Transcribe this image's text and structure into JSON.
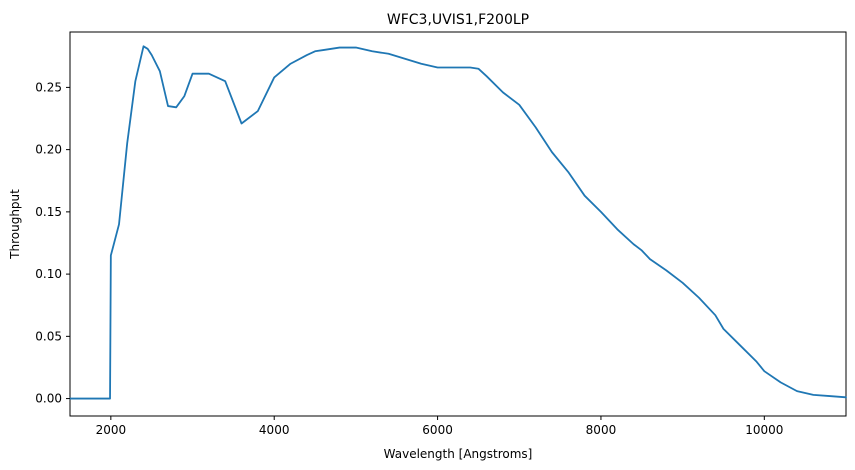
{
  "chart_data": {
    "type": "line",
    "title": "WFC3,UVIS1,F200LP",
    "xlabel": "Wavelength [Angstroms]",
    "ylabel": "Throughput",
    "xlim": [
      1500,
      11000
    ],
    "ylim": [
      -0.014,
      0.2945
    ],
    "grid": false,
    "color": "#1f77b4",
    "x_ticks": [
      {
        "value": 2000,
        "label": "2000"
      },
      {
        "value": 4000,
        "label": "4000"
      },
      {
        "value": 6000,
        "label": "6000"
      },
      {
        "value": 8000,
        "label": "8000"
      },
      {
        "value": 10000,
        "label": "10000"
      }
    ],
    "y_ticks": [
      {
        "value": 0.0,
        "label": "0.00"
      },
      {
        "value": 0.05,
        "label": "0.05"
      },
      {
        "value": 0.1,
        "label": "0.10"
      },
      {
        "value": 0.15,
        "label": "0.15"
      },
      {
        "value": 0.2,
        "label": "0.20"
      },
      {
        "value": 0.25,
        "label": "0.25"
      }
    ],
    "series": [
      {
        "x": [
          1500,
          1990,
          2000,
          2020,
          2100,
          2200,
          2300,
          2400,
          2450,
          2500,
          2600,
          2700,
          2800,
          2900,
          3000,
          3100,
          3200,
          3300,
          3400,
          3600,
          3800,
          4000,
          4200,
          4400,
          4500,
          4600,
          4700,
          4800,
          4900,
          5000,
          5200,
          5400,
          5600,
          5800,
          6000,
          6200,
          6400,
          6500,
          6600,
          6800,
          7000,
          7200,
          7400,
          7600,
          7800,
          8000,
          8200,
          8400,
          8500,
          8600,
          8800,
          9000,
          9200,
          9400,
          9500,
          9700,
          9900,
          10000,
          10200,
          10400,
          10600,
          10800,
          11000
        ],
        "y": [
          0.0,
          0.0,
          0.115,
          0.12,
          0.14,
          0.205,
          0.255,
          0.283,
          0.281,
          0.276,
          0.263,
          0.235,
          0.234,
          0.243,
          0.261,
          0.261,
          0.261,
          0.258,
          0.255,
          0.221,
          0.231,
          0.258,
          0.269,
          0.276,
          0.279,
          0.28,
          0.281,
          0.282,
          0.282,
          0.282,
          0.279,
          0.277,
          0.273,
          0.269,
          0.266,
          0.266,
          0.266,
          0.265,
          0.259,
          0.246,
          0.236,
          0.218,
          0.198,
          0.182,
          0.163,
          0.15,
          0.136,
          0.124,
          0.119,
          0.112,
          0.103,
          0.093,
          0.081,
          0.067,
          0.056,
          0.043,
          0.03,
          0.022,
          0.013,
          0.006,
          0.003,
          0.002,
          0.001
        ]
      }
    ]
  }
}
